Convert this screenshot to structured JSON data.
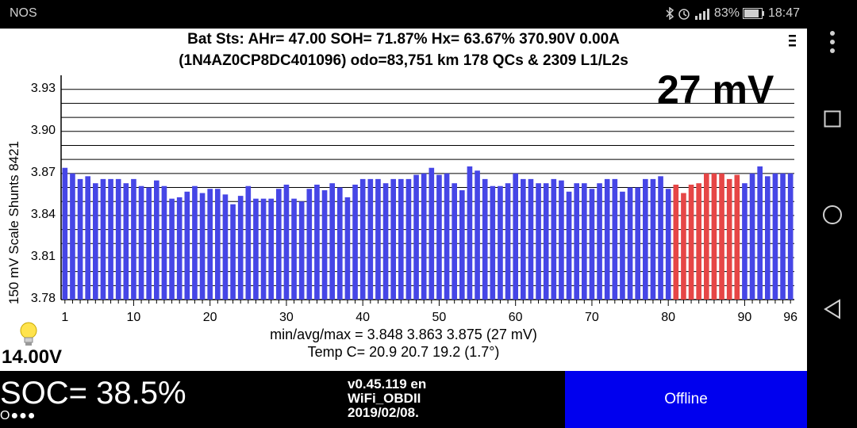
{
  "status_bar": {
    "carrier": "NOS",
    "battery": "83%",
    "time": "18:47"
  },
  "header": {
    "line1": "Bat Sts:  AHr= 47.00  SOH= 71.87%   Hx= 63.67%   370.90V 0.00A",
    "line2": "(1N4AZ0CP8DC401096) odo=83,751 km  178 QCs & 2309 L1/L2s",
    "menu_icon": "menu-icon"
  },
  "chart_data": {
    "type": "bar",
    "y_title": "150 mV Scale  Shunts 8421",
    "ylim": [
      3.78,
      3.94
    ],
    "y_ticks": [
      "3.93",
      "3.90",
      "3.87",
      "3.84",
      "3.81",
      "3.78"
    ],
    "x_ticks": [
      "1",
      "10",
      "20",
      "30",
      "40",
      "50",
      "60",
      "70",
      "80",
      "90",
      "96"
    ],
    "delta_label": "27 mV",
    "colors": {
      "normal": "#4646e6",
      "shunted": "#e64646"
    },
    "cells": [
      3.874,
      3.87,
      3.866,
      3.868,
      3.863,
      3.866,
      3.866,
      3.866,
      3.863,
      3.866,
      3.861,
      3.86,
      3.865,
      3.861,
      3.852,
      3.853,
      3.857,
      3.861,
      3.856,
      3.859,
      3.859,
      3.855,
      3.848,
      3.854,
      3.861,
      3.852,
      3.852,
      3.852,
      3.859,
      3.862,
      3.852,
      3.85,
      3.859,
      3.862,
      3.858,
      3.863,
      3.86,
      3.853,
      3.862,
      3.866,
      3.866,
      3.866,
      3.863,
      3.866,
      3.866,
      3.866,
      3.869,
      3.87,
      3.874,
      3.869,
      3.87,
      3.863,
      3.858,
      3.875,
      3.872,
      3.866,
      3.861,
      3.861,
      3.863,
      3.87,
      3.866,
      3.866,
      3.863,
      3.863,
      3.866,
      3.865,
      3.857,
      3.863,
      3.863,
      3.859,
      3.863,
      3.866,
      3.866,
      3.857,
      3.86,
      3.86,
      3.866,
      3.866,
      3.868,
      3.859,
      3.862,
      3.856,
      3.862,
      3.863,
      3.87,
      3.87,
      3.87,
      3.866,
      3.869,
      3.863,
      3.87,
      3.875,
      3.868,
      3.87,
      3.87,
      3.87
    ],
    "shunted_cells": [
      81,
      82,
      83,
      84,
      85,
      86,
      87,
      88,
      89
    ]
  },
  "stats": {
    "minavgmax": "min/avg/max = 3.848 3.863 3.875  (27 mV)",
    "temp": "Temp C= 20.9  20.7  19.2  (1.7°)"
  },
  "aux_voltage": "14.00V",
  "soc": "SOC= 38.5%",
  "dots": "O●●●",
  "version": {
    "line1": "v0.45.119 en",
    "line2": "WiFi_OBDII",
    "line3": "2019/02/08."
  },
  "offline_label": "Offline"
}
